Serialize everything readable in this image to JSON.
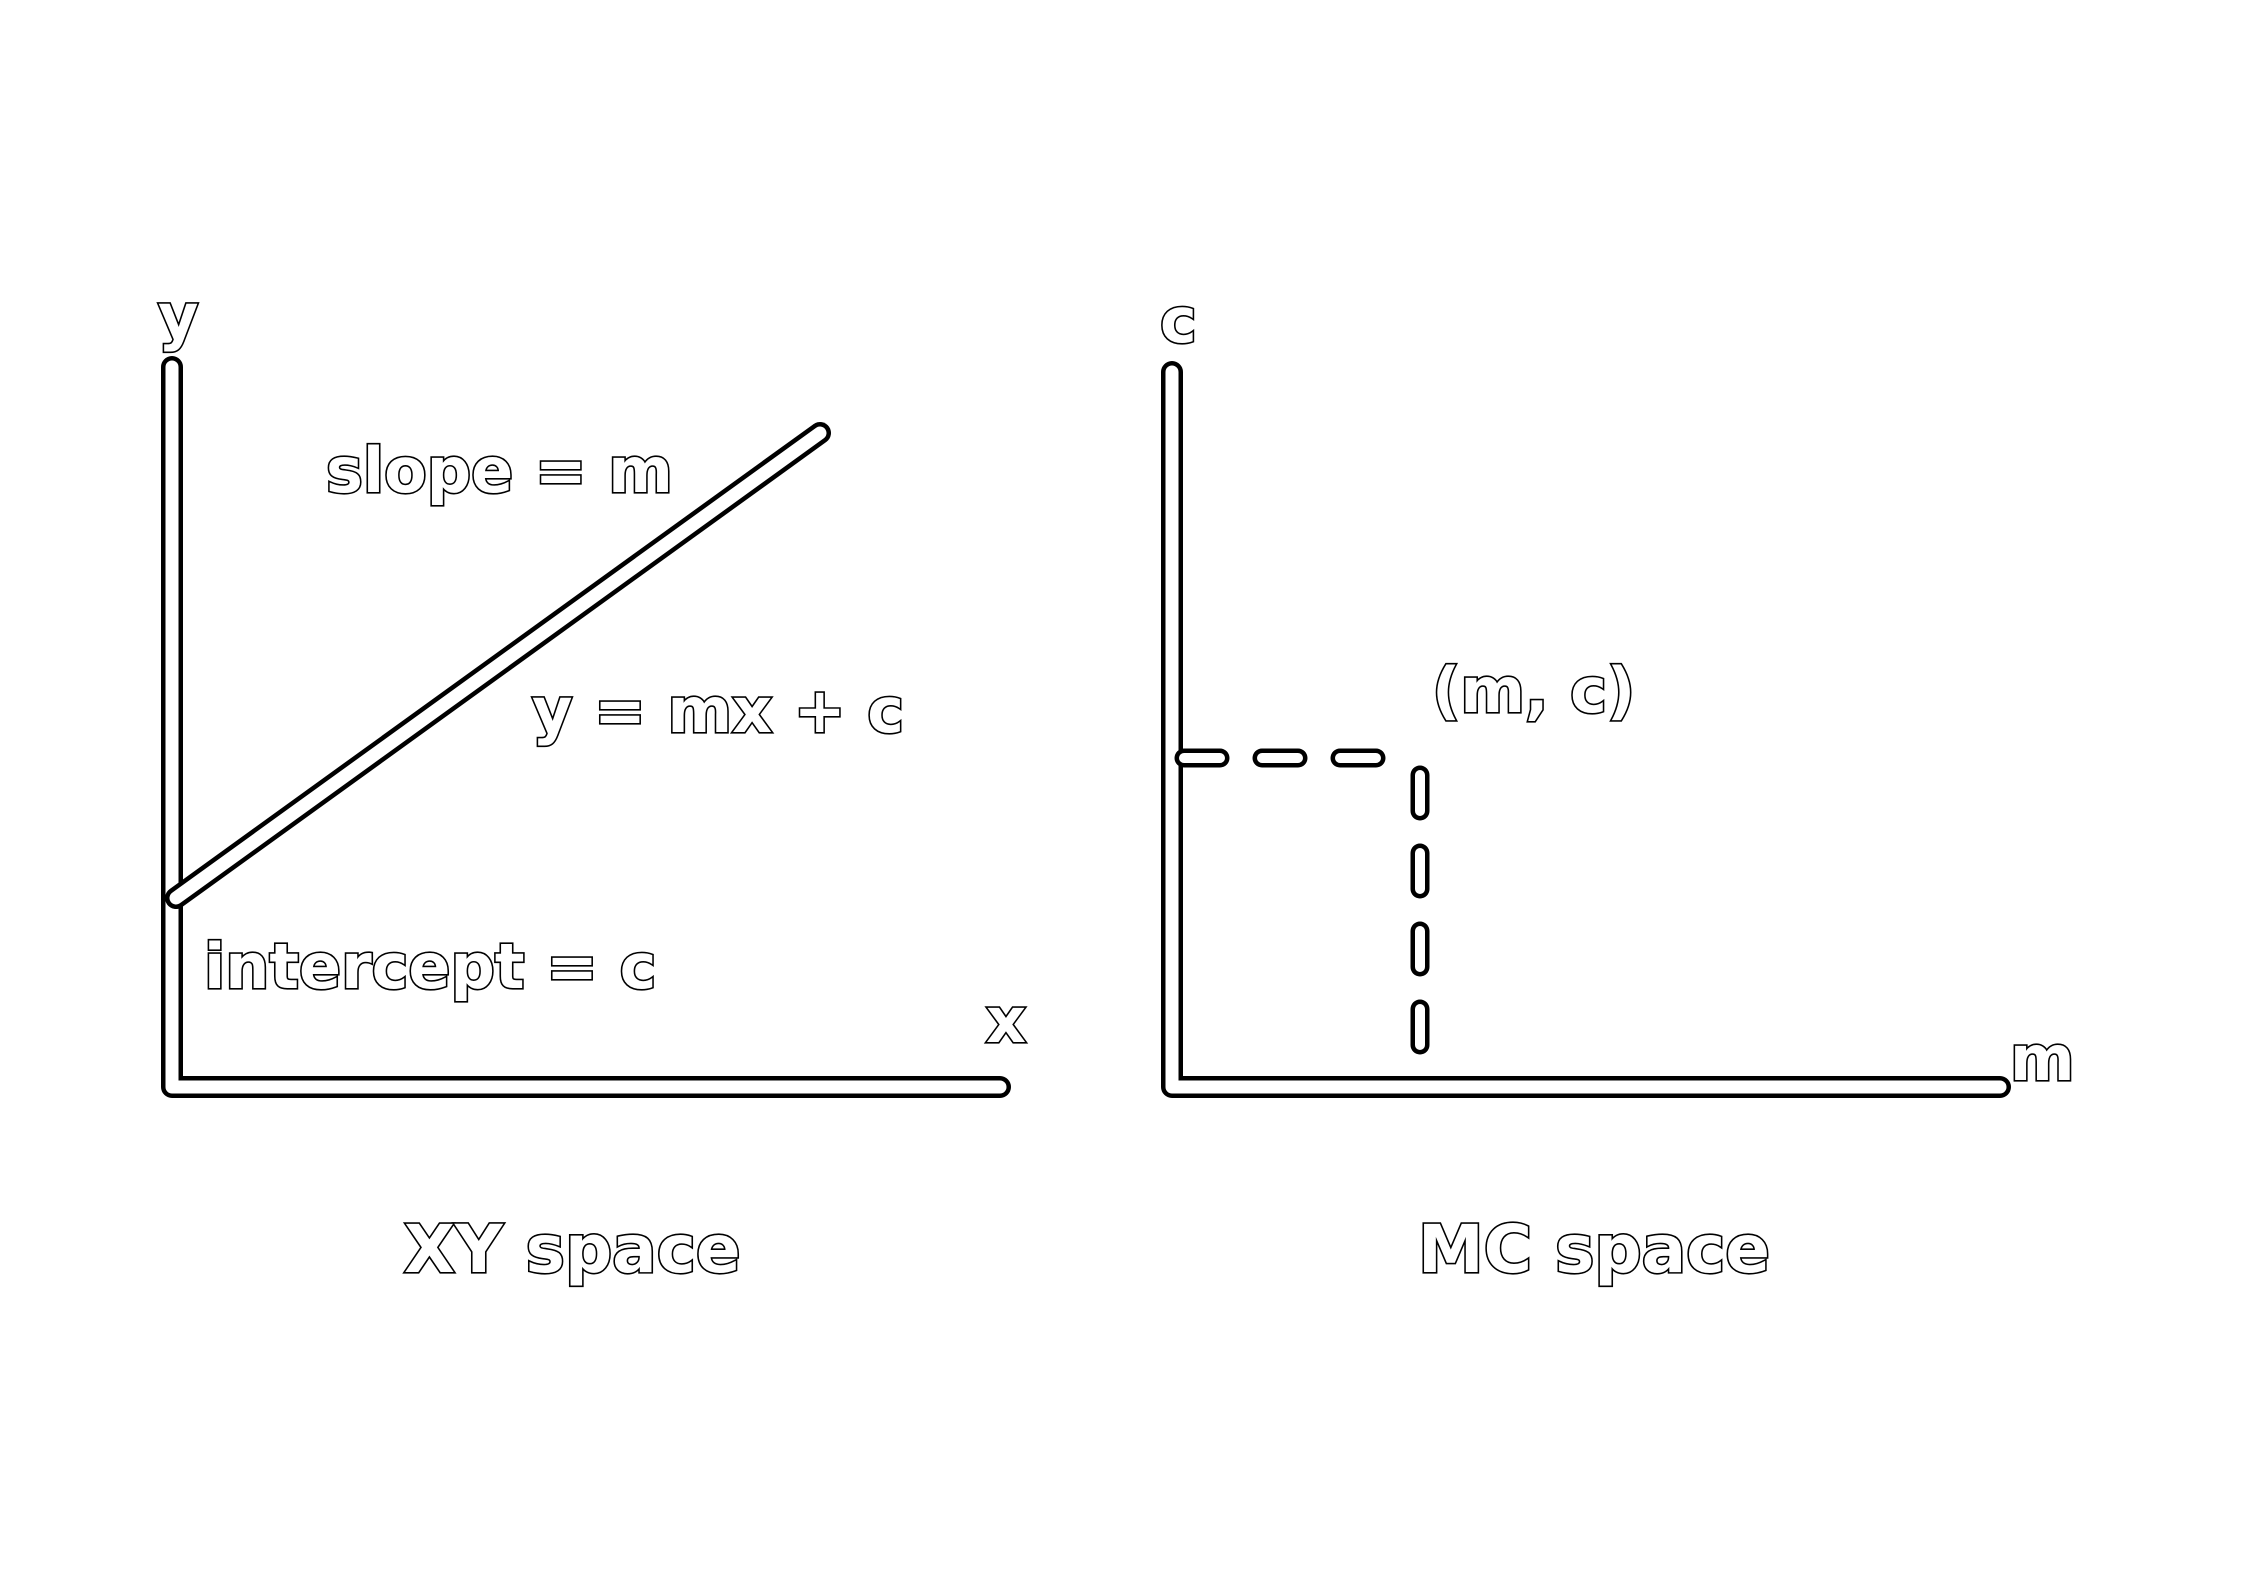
{
  "xy_panel": {
    "axis_y_label": "y",
    "axis_x_label": "x",
    "slope_label": "slope = m",
    "equation_label": "y = mx + c",
    "intercept_label": "intercept = c",
    "caption": "XY space"
  },
  "mc_panel": {
    "axis_c_label": "c",
    "axis_m_label": "m",
    "point_label": "(m, c)",
    "caption": "MC space"
  },
  "colors": {
    "ink": "#000000",
    "paper": "#ffffff"
  }
}
